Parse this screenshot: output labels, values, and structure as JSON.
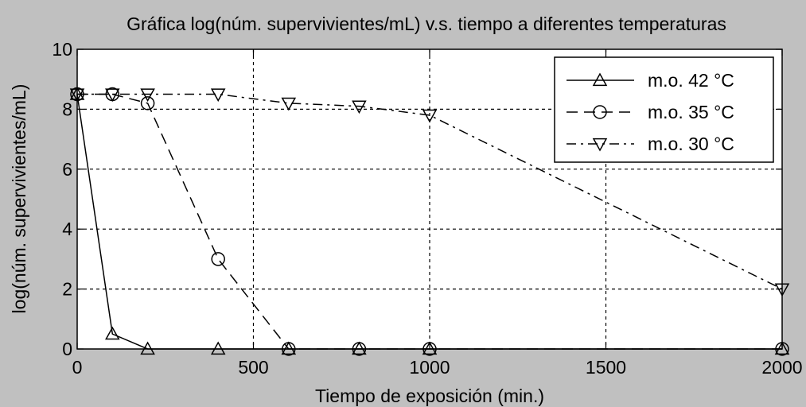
{
  "chart_data": {
    "type": "line",
    "title": "Gráfica log(núm. supervivientes/mL) v.s. tiempo a diferentes temperaturas",
    "xlabel": "Tiempo de exposición (min.)",
    "ylabel": "log(núm. supervivientes/mL)",
    "xlim": [
      0,
      2000
    ],
    "ylim": [
      0,
      10
    ],
    "x_ticks": [
      0,
      500,
      1000,
      1500,
      2000
    ],
    "y_ticks": [
      0,
      2,
      4,
      6,
      8,
      10
    ],
    "grid": true,
    "legend_position": "top-right",
    "series": [
      {
        "name": "m.o. 42 °C",
        "marker": "triangle-up",
        "linestyle": "solid",
        "color": "#000000",
        "x": [
          0,
          100,
          200,
          400,
          600,
          800,
          1000,
          2000
        ],
        "y": [
          8.5,
          0.5,
          0,
          0,
          0,
          0,
          0,
          0
        ]
      },
      {
        "name": "m.o. 35 °C",
        "marker": "circle",
        "linestyle": "dashed",
        "color": "#000000",
        "x": [
          0,
          100,
          200,
          400,
          600,
          800,
          1000,
          2000
        ],
        "y": [
          8.5,
          8.5,
          8.2,
          3,
          0,
          0,
          0,
          0
        ]
      },
      {
        "name": "m.o. 30 °C",
        "marker": "triangle-down",
        "linestyle": "dashdot",
        "color": "#000000",
        "x": [
          0,
          100,
          200,
          400,
          600,
          800,
          1000,
          2000
        ],
        "y": [
          8.5,
          8.5,
          8.5,
          8.5,
          8.2,
          8.1,
          7.8,
          2
        ]
      }
    ]
  }
}
